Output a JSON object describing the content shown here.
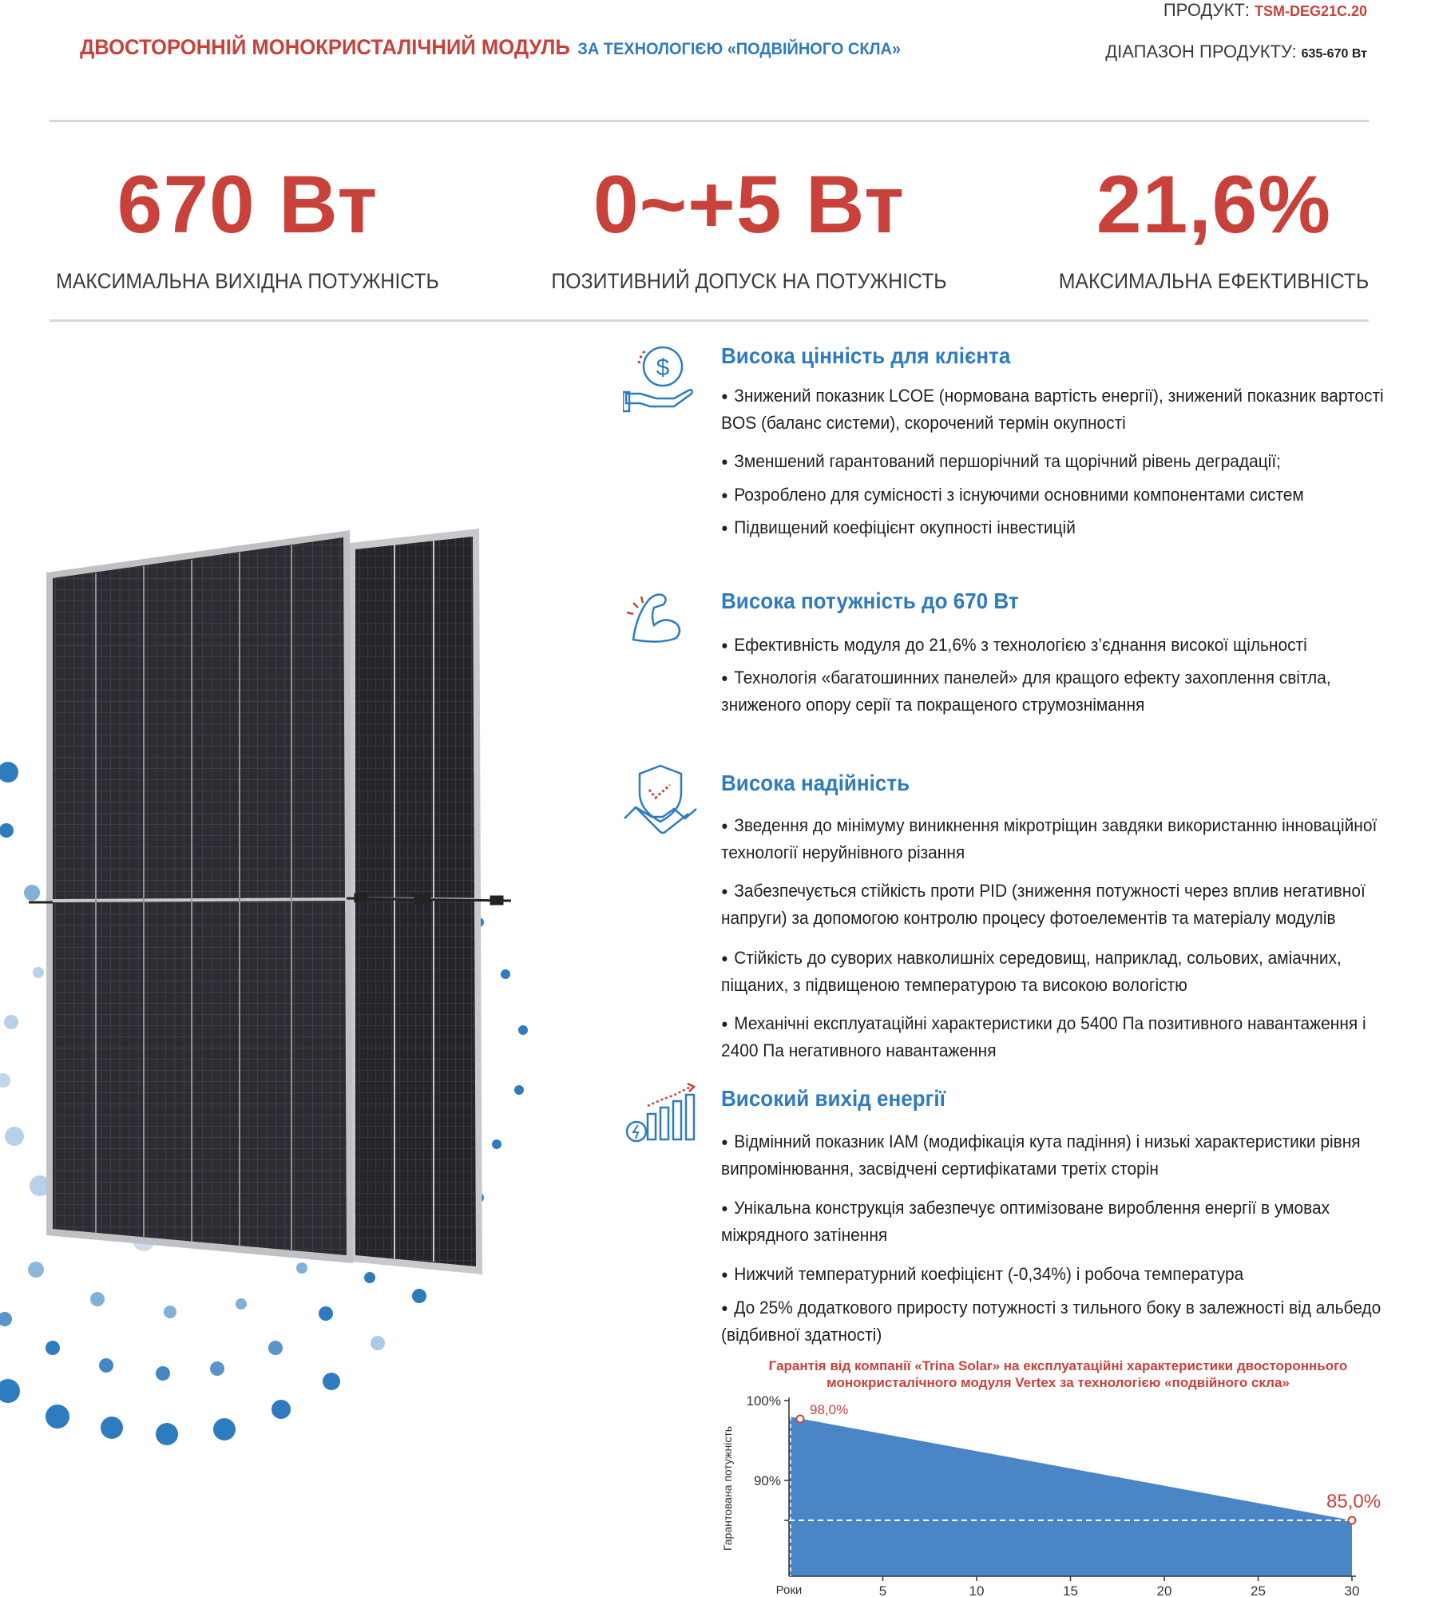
{
  "header": {
    "title": "ДВОСТОРОННІЙ МОНОКРИСТАЛІЧНИЙ МОДУЛЬ",
    "subtitle": "ЗА ТЕХНОЛОГІЄЮ «ПОДВІЙНОГО СКЛА»",
    "product_label": "ПРОДУКТ:",
    "product_value": "TSM-DEG21C.20",
    "range_label": "ДІАПАЗОН ПРОДУКТУ:",
    "range_value": "635-670 Вт"
  },
  "stats": [
    {
      "value": "670 Вт",
      "label": "МАКСИМАЛЬНА ВИХІДНА ПОТУЖНІСТЬ"
    },
    {
      "value": "0~+5 Вт",
      "label": "ПОЗИТИВНИЙ ДОПУСК НА ПОТУЖНІСТЬ"
    },
    {
      "value": "21,6%",
      "label": "МАКСИМАЛЬНА ЕФЕКТИВНІСТЬ"
    }
  ],
  "features": [
    {
      "icon": "dollar-hand-icon",
      "title": "Висока цінність для клієнта",
      "bullets": [
        "Знижений показник LCOE (нормована вартість енергії), знижений показник вартості BOS (баланс системи), скорочений термін окупності",
        "Зменшений гарантований першорічний та щорічний рівень деградації;",
        "Розроблено для сумісності з існуючими основними компонентами систем",
        "Підвищений коефіцієнт окупності інвестицій"
      ]
    },
    {
      "icon": "flexed-arm-icon",
      "title": "Висока потужність до 670 Вт",
      "bullets": [
        "Ефективність модуля до 21,6% з технологією з’єднання високої щільності",
        "Технологія «багатошинних панелей» для кращого ефекту захоплення світла, зниженого опору серії та покращеного струмознімання"
      ]
    },
    {
      "icon": "shield-handshake-icon",
      "title": "Висока надійність",
      "bullets": [
        "Зведення до мінімуму виникнення мікротріщин завдяки використанню інноваційної технології неруйнівного різання",
        "Забезпечується стійкість проти PID (зниження потужності через вплив негативної напруги) за допомогою контролю процесу фотоелементів та матеріалу модулів",
        "Стійкість до суворих навколишніх середовищ, наприклад, сольових, аміачних, піщаних, з підвищеною температурою та високою вологістю",
        "Механічні експлуатаційні характеристики до 5400 Па позитивного навантаження і 2400 Па негативного навантаження"
      ]
    },
    {
      "icon": "energy-bars-icon",
      "title": "Високий вихід енергії",
      "bullets": [
        "Відмінний показник IAM (модифікація кута падіння) і низькі характеристики рівня випромінювання, засвідчені сертифікатами третіх сторін",
        "Унікальна конструкція забезпечує оптимізоване вироблення енергії в умовах міжрядного затінення",
        "Нижчий температурний коефіцієнт (-0,34%) і робоча температура",
        "До 25% додаткового приросту потужності з тильного боку в залежності від альбедо (відбивної здатності)"
      ]
    }
  ],
  "colors": {
    "accent_red": "#c8413a",
    "accent_blue": "#2f7bbf",
    "chart_fill": "#4a86c5"
  },
  "chart_data": {
    "type": "area",
    "title": "Гарантія від компанії «Trina Solar» на експлуатаційні характеристики двостороннього монокристалічного модуля Vertex за технологією «подвійного скла»",
    "ylabel": "Гарантована потужність",
    "xlabel": "Роки",
    "x": [
      1,
      30
    ],
    "values": [
      98.0,
      85.0
    ],
    "point_labels": [
      "98,0%",
      "85,0%"
    ],
    "reference_line": 85.0,
    "xticks": [
      5,
      10,
      15,
      20,
      25,
      30
    ],
    "xtick_labels": [
      "5",
      "10",
      "15",
      "20",
      "25",
      "30"
    ],
    "yticks": [
      100,
      90
    ],
    "ytick_labels": [
      "100%",
      "90%"
    ],
    "xlim": [
      0,
      30
    ],
    "ylim": [
      78,
      100
    ]
  }
}
